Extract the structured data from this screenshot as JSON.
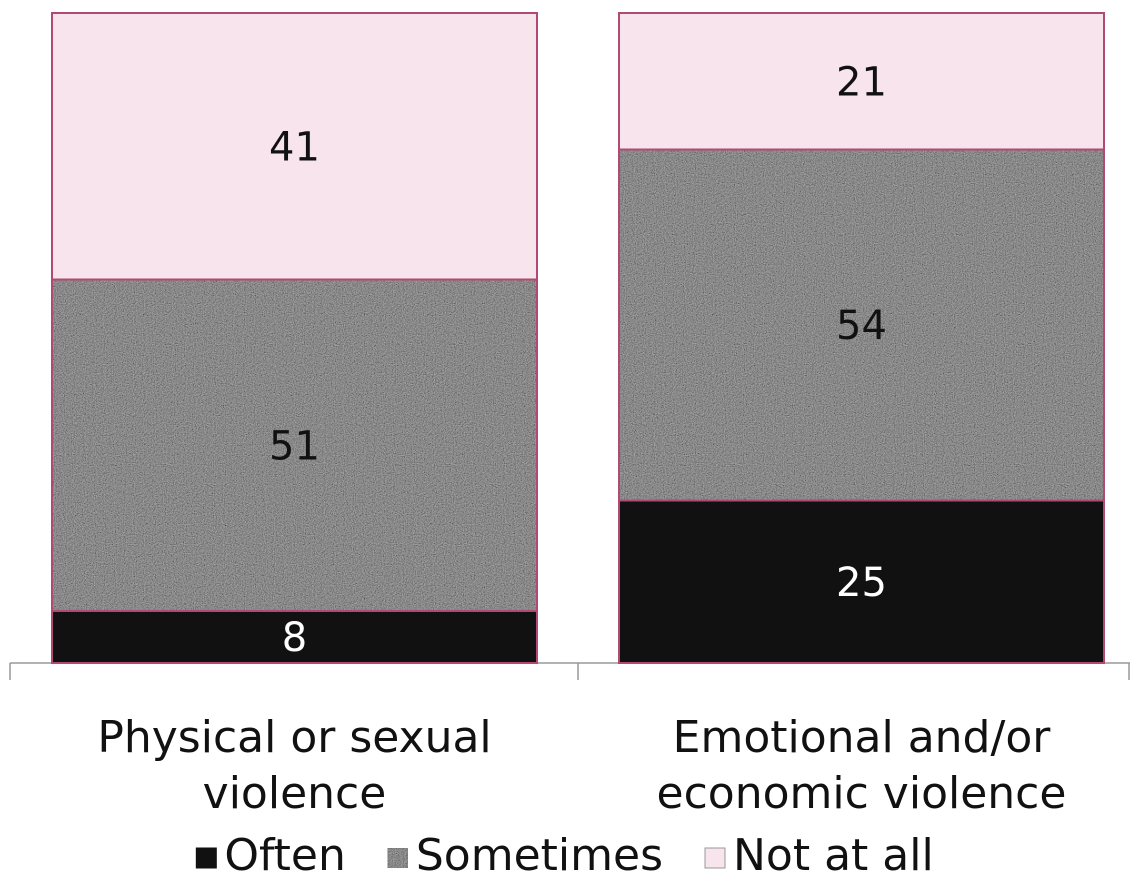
{
  "chart_data": {
    "type": "stacked_bar",
    "categories": [
      "Physical or sexual violence",
      "Emotional and/or economic violence"
    ],
    "series": [
      {
        "name": "Often",
        "color": "#111111",
        "values": [
          8,
          25
        ]
      },
      {
        "name": "Sometimes",
        "color": "#a8a8a8",
        "values": [
          51,
          54
        ]
      },
      {
        "name": "Not at all",
        "color": "#f8e4ec",
        "values": [
          41,
          21
        ]
      }
    ],
    "ylim": [
      0,
      100
    ],
    "legend": "bottom"
  }
}
